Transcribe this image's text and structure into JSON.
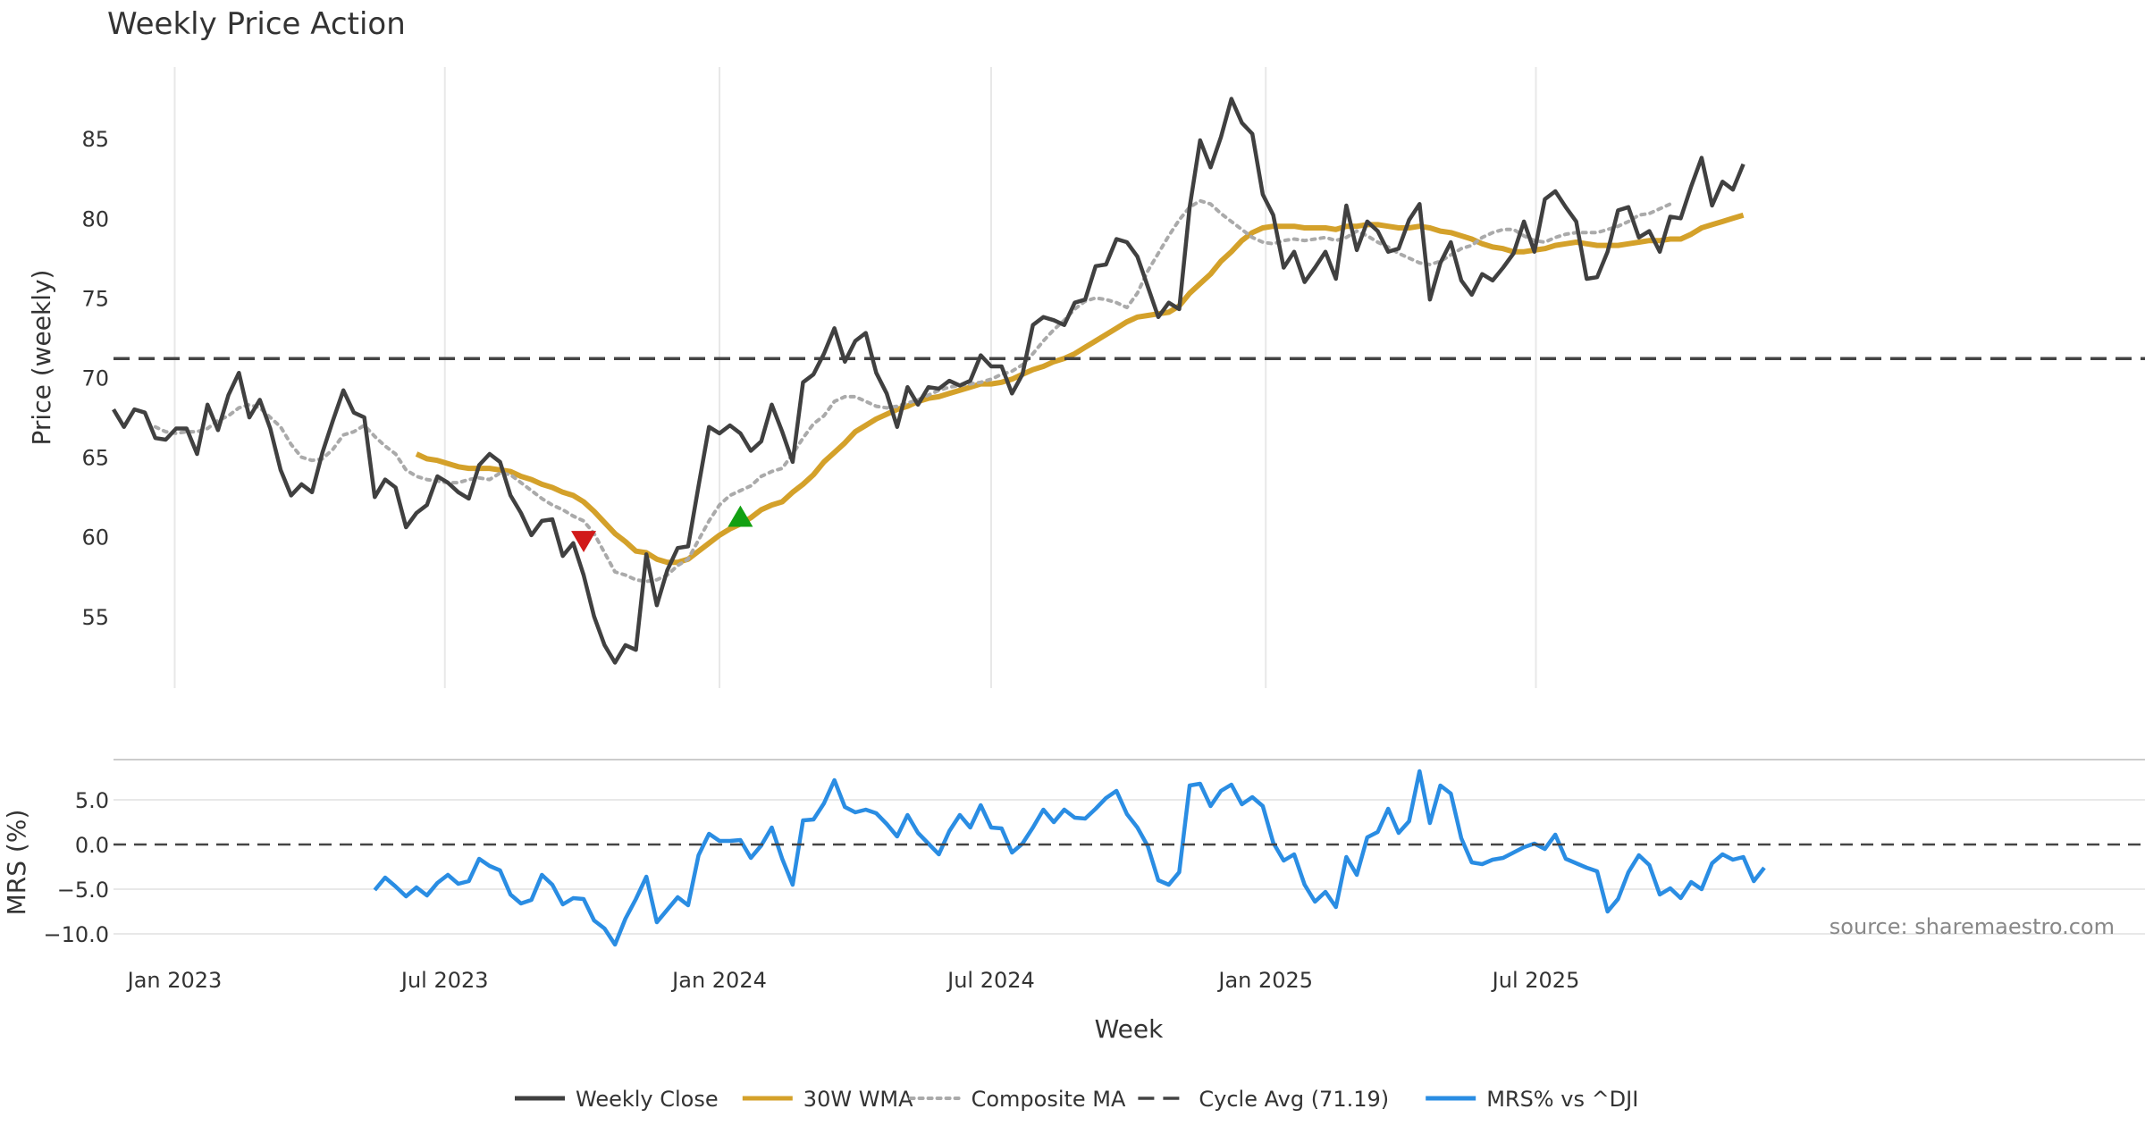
{
  "title": "Weekly Price Action",
  "source_note": "source: sharemaestro.com",
  "colors": {
    "close": "#404040",
    "wma": "#D4A12A",
    "composite": "#AAAAAA",
    "cycle": "#444444",
    "mrs": "#2A8DE3",
    "sell_marker": "#D11A1A",
    "buy_marker": "#12A012",
    "grid": "#E8E8E8"
  },
  "chart_data": [
    {
      "type": "line",
      "panel": "price",
      "title": "Weekly Price Action",
      "xlabel": "",
      "ylabel": "Price (weekly)",
      "x_start": "2022-11-21",
      "x_end": "2025-11-24",
      "x_tick_labels": [
        "Jan 2023",
        "Jul 2023",
        "Jan 2024",
        "Jul 2024",
        "Jan 2025",
        "Jul 2025"
      ],
      "x_tick_dates": [
        "2023-01-01",
        "2023-07-01",
        "2024-01-01",
        "2024-07-01",
        "2025-01-01",
        "2025-07-01"
      ],
      "y_ticks": [
        55,
        60,
        65,
        70,
        75,
        80,
        85
      ],
      "ylim": [
        50.5,
        89.5
      ],
      "grid": "vertical",
      "series": [
        {
          "name": "Weekly Close",
          "role": "close",
          "values": [
            68.0,
            66.9,
            68.0,
            67.8,
            66.2,
            66.1,
            66.8,
            66.8,
            65.2,
            68.3,
            66.7,
            68.9,
            70.3,
            67.5,
            68.6,
            66.8,
            64.2,
            62.6,
            63.3,
            62.8,
            65.3,
            67.3,
            69.2,
            67.8,
            67.5,
            62.5,
            63.6,
            63.1,
            60.6,
            61.5,
            62.0,
            63.8,
            63.4,
            62.8,
            62.4,
            64.5,
            65.2,
            64.7,
            62.6,
            61.5,
            60.1,
            61.0,
            61.1,
            58.8,
            59.6,
            57.6,
            55.0,
            53.2,
            52.1,
            53.2,
            52.9,
            58.9,
            55.7,
            57.9,
            59.3,
            59.4,
            63.2,
            66.9,
            66.5,
            67.0,
            66.5,
            65.4,
            66.0,
            68.3,
            66.6,
            64.7,
            69.7,
            70.2,
            71.5,
            73.1,
            71.0,
            72.3,
            72.8,
            70.3,
            69.0,
            66.9,
            69.4,
            68.3,
            69.4,
            69.3,
            69.8,
            69.5,
            69.8,
            71.4,
            70.7,
            70.7,
            69.0,
            70.2,
            73.3,
            73.8,
            73.6,
            73.3,
            74.7,
            74.9,
            77.0,
            77.1,
            78.7,
            78.5,
            77.6,
            75.7,
            73.8,
            74.7,
            74.3,
            80.7,
            84.9,
            83.2,
            85.1,
            87.5,
            86.0,
            85.3,
            81.5,
            80.2,
            76.9,
            77.9,
            76.0,
            76.9,
            77.9,
            76.2,
            80.8,
            78.0,
            79.8,
            79.2,
            77.9,
            78.1,
            79.9,
            80.9,
            74.9,
            77.2,
            78.5,
            76.1,
            75.2,
            76.5,
            76.1,
            76.9,
            77.8,
            79.8,
            77.9,
            81.2,
            81.7,
            80.7,
            79.8,
            76.2,
            76.3,
            77.9,
            80.5,
            80.7,
            78.8,
            79.2,
            77.9,
            80.1,
            80.0,
            82.0,
            83.8,
            80.8,
            82.3,
            81.8,
            83.4
          ]
        },
        {
          "name": "30W WMA",
          "role": "wma",
          "start_index": 29,
          "values": [
            65.2,
            64.9,
            64.8,
            64.6,
            64.4,
            64.3,
            64.3,
            64.3,
            64.2,
            64.1,
            63.8,
            63.6,
            63.3,
            63.1,
            62.8,
            62.6,
            62.2,
            61.6,
            60.9,
            60.2,
            59.7,
            59.1,
            59.0,
            58.6,
            58.4,
            58.4,
            58.6,
            59.1,
            59.6,
            60.1,
            60.5,
            60.8,
            61.2,
            61.7,
            62.0,
            62.2,
            62.8,
            63.3,
            63.9,
            64.7,
            65.3,
            65.9,
            66.6,
            67.0,
            67.4,
            67.7,
            68.0,
            68.2,
            68.5,
            68.7,
            68.8,
            69.0,
            69.2,
            69.4,
            69.6,
            69.6,
            69.7,
            69.9,
            70.2,
            70.5,
            70.7,
            71.0,
            71.2,
            71.5,
            71.9,
            72.3,
            72.7,
            73.1,
            73.5,
            73.8,
            73.9,
            74.0,
            74.1,
            74.5,
            75.3,
            75.9,
            76.5,
            77.3,
            77.9,
            78.6,
            79.1,
            79.4,
            79.5,
            79.5,
            79.5,
            79.4,
            79.4,
            79.4,
            79.3,
            79.5,
            79.5,
            79.6,
            79.6,
            79.5,
            79.4,
            79.4,
            79.5,
            79.4,
            79.2,
            79.1,
            78.9,
            78.7,
            78.4,
            78.2,
            78.1,
            77.9,
            77.9,
            78.0,
            78.1,
            78.3,
            78.4,
            78.5,
            78.4,
            78.3,
            78.3,
            78.3,
            78.4,
            78.5,
            78.6,
            78.6,
            78.7,
            78.7,
            79.0,
            79.4,
            79.6,
            79.8,
            80.0,
            80.2
          ]
        },
        {
          "name": "Composite MA",
          "role": "composite",
          "start_index": 4,
          "values": [
            66.9,
            66.6,
            66.5,
            66.6,
            66.6,
            66.8,
            67.3,
            67.6,
            68.1,
            68.3,
            68.1,
            67.5,
            66.9,
            65.8,
            65.0,
            64.8,
            64.9,
            65.5,
            66.4,
            66.6,
            67.0,
            66.3,
            65.7,
            65.2,
            64.2,
            63.8,
            63.6,
            63.5,
            63.4,
            63.4,
            63.6,
            63.7,
            63.6,
            64.0,
            63.9,
            63.4,
            62.9,
            62.4,
            62.0,
            61.7,
            61.3,
            61.0,
            60.2,
            59.0,
            57.8,
            57.6,
            57.3,
            57.2,
            57.3,
            57.6,
            58.2,
            58.6,
            59.8,
            61.0,
            62.0,
            62.6,
            62.9,
            63.2,
            63.8,
            64.1,
            64.3,
            65.2,
            66.2,
            67.1,
            67.6,
            68.5,
            68.8,
            68.8,
            68.5,
            68.2,
            68.1,
            68.2,
            68.4,
            68.6,
            68.9,
            69.2,
            69.4,
            69.5,
            69.6,
            69.7,
            69.9,
            70.2,
            70.4,
            70.8,
            71.5,
            72.3,
            73.0,
            73.6,
            74.3,
            74.8,
            75.0,
            74.9,
            74.7,
            74.4,
            75.3,
            76.7,
            77.8,
            78.9,
            79.9,
            80.7,
            81.1,
            80.9,
            80.3,
            79.8,
            79.3,
            78.8,
            78.5,
            78.4,
            78.6,
            78.7,
            78.6,
            78.7,
            78.8,
            78.6,
            78.8,
            79.2,
            78.9,
            78.5,
            78.2,
            77.8,
            77.5,
            77.2,
            77.1,
            77.3,
            77.7,
            78.1,
            78.3,
            78.8,
            79.1,
            79.3,
            79.3,
            78.9,
            78.6,
            78.5,
            78.8,
            79.0,
            79.1,
            79.1,
            79.1,
            79.3,
            79.5,
            79.8,
            80.2,
            80.3,
            80.6,
            80.9
          ]
        },
        {
          "name": "Cycle Avg (71.19)",
          "role": "cycle",
          "constant": 71.19
        }
      ],
      "markers": [
        {
          "type": "sell",
          "shape": "triangle-down",
          "index": 45,
          "value": 59.7
        },
        {
          "type": "buy",
          "shape": "triangle-up",
          "index": 60,
          "value": 61.3
        }
      ]
    },
    {
      "type": "line",
      "panel": "mrs",
      "xlabel": "Week",
      "ylabel": "MRS (%)",
      "y_ticks": [
        -10.0,
        -5.0,
        0.0,
        5.0
      ],
      "y_tick_labels": [
        "−10.0",
        "−5.0",
        "0.0",
        "5.0"
      ],
      "ylim": [
        -11.5,
        9.5
      ],
      "grid": "horizontal",
      "series": [
        {
          "name": "MRS% vs ^DJI",
          "role": "mrs",
          "start_index": 25,
          "values": [
            -5.1,
            -3.7,
            -4.7,
            -5.8,
            -4.8,
            -5.7,
            -4.3,
            -3.4,
            -4.4,
            -4.1,
            -1.6,
            -2.4,
            -2.9,
            -5.6,
            -6.6,
            -6.2,
            -3.4,
            -4.5,
            -6.7,
            -6.0,
            -6.1,
            -8.5,
            -9.4,
            -11.2,
            -8.3,
            -6.1,
            -3.6,
            -8.7,
            -7.3,
            -5.9,
            -6.8,
            -1.2,
            1.2,
            0.4,
            0.4,
            0.5,
            -1.5,
            -0.1,
            1.9,
            -1.6,
            -4.5,
            2.7,
            2.8,
            4.6,
            7.2,
            4.2,
            3.6,
            3.9,
            3.5,
            2.3,
            0.9,
            3.3,
            1.3,
            0.1,
            -1.1,
            1.5,
            3.3,
            1.9,
            4.4,
            1.9,
            1.8,
            -0.9,
            0.1,
            1.9,
            3.9,
            2.5,
            3.9,
            3.0,
            2.9,
            4.0,
            5.2,
            6.0,
            3.4,
            1.9,
            -0.2,
            -4.0,
            -4.5,
            -3.1,
            6.6,
            6.8,
            4.3,
            6.0,
            6.7,
            4.5,
            5.3,
            4.3,
            0.2,
            -1.8,
            -1.1,
            -4.5,
            -6.4,
            -5.3,
            -7.0,
            -1.4,
            -3.4,
            0.8,
            1.4,
            4.0,
            1.3,
            2.6,
            8.2,
            2.4,
            6.6,
            5.7,
            0.7,
            -2.0,
            -2.2,
            -1.7,
            -1.5,
            -0.9,
            -0.3,
            0.1,
            -0.5,
            1.1,
            -1.6,
            -2.1,
            -2.6,
            -3.0,
            -7.5,
            -6.1,
            -3.1,
            -1.2,
            -2.3,
            -5.6,
            -4.9,
            -6.0,
            -4.2,
            -5.0,
            -2.1,
            -1.1,
            -1.7,
            -1.4,
            -4.1,
            -2.6
          ]
        },
        {
          "name": "zero line",
          "role": "zero",
          "constant": 0
        }
      ]
    }
  ],
  "legend": {
    "placement": "bottom-center",
    "items": [
      {
        "label": "Weekly Close",
        "style": "solid",
        "color_key": "close"
      },
      {
        "label": "30W WMA",
        "style": "solid",
        "color_key": "wma"
      },
      {
        "label": "Composite MA",
        "style": "dotted",
        "color_key": "composite"
      },
      {
        "label": "Cycle Avg (71.19)",
        "style": "dashed",
        "color_key": "cycle"
      },
      {
        "label": "MRS% vs ^DJI",
        "style": "solid",
        "color_key": "mrs"
      }
    ]
  }
}
